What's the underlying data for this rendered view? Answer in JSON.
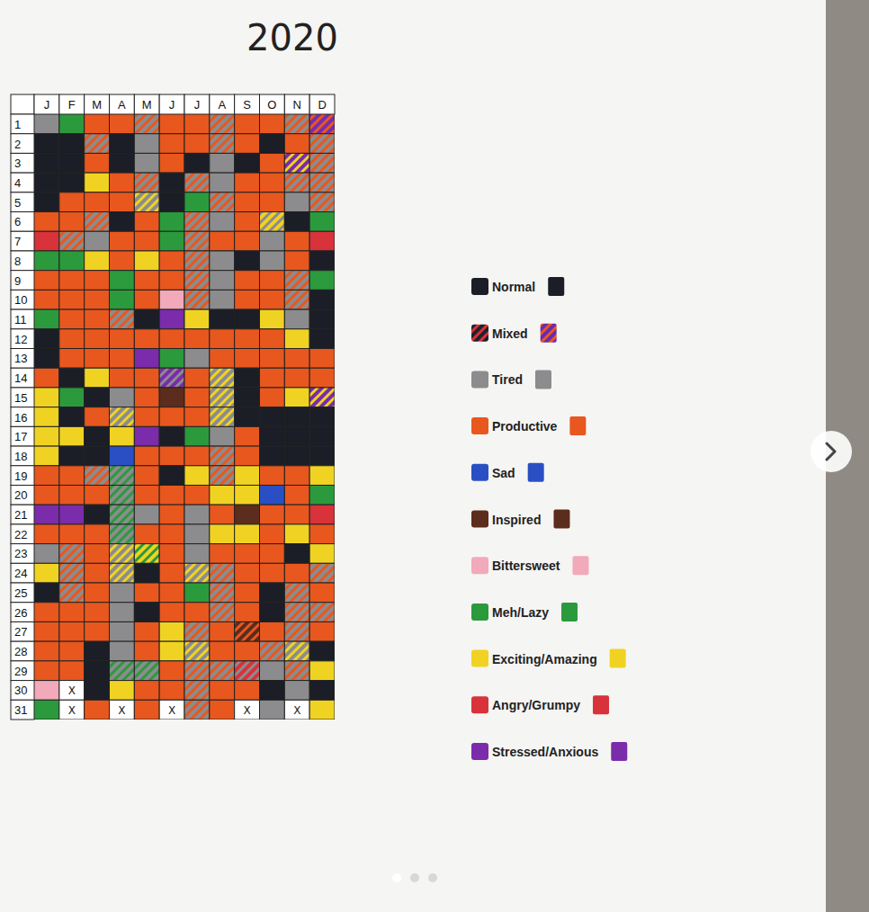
{
  "chart_data": {
    "type": "heatmap",
    "title": "2020",
    "categories": [
      "J",
      "F",
      "M",
      "A",
      "M",
      "J",
      "J",
      "A",
      "S",
      "O",
      "N",
      "D"
    ],
    "rows": [
      1,
      2,
      3,
      4,
      5,
      6,
      7,
      8,
      9,
      10,
      11,
      12,
      13,
      14,
      15,
      16,
      17,
      18,
      19,
      20,
      21,
      22,
      23,
      24,
      25,
      26,
      27,
      28,
      29,
      30,
      31
    ],
    "series": [
      {
        "name": "Normal",
        "color": "#1b1e26"
      },
      {
        "name": "Mixed",
        "color": "#23202c",
        "marker": "striped"
      },
      {
        "name": "Tired",
        "color": "#8c8c8e"
      },
      {
        "name": "Productive",
        "color": "#e8571e"
      },
      {
        "name": "Sad",
        "color": "#2a4fc4"
      },
      {
        "name": "Inspired",
        "color": "#5c2c1c"
      },
      {
        "name": "Bittersweet",
        "color": "#f2a9b9"
      },
      {
        "name": "Meh/Lazy",
        "color": "#2b9a3c"
      },
      {
        "name": "Exciting/Amazing",
        "color": "#f0d322"
      },
      {
        "name": "Angry/Grumpy",
        "color": "#d8323a"
      },
      {
        "name": "Stressed/Anxious",
        "color": "#7a2cab"
      }
    ],
    "cells": [
      [
        2,
        0,
        0,
        0,
        0,
        3,
        9,
        7,
        3,
        3,
        7,
        0,
        0,
        3,
        8,
        8,
        8,
        8,
        3,
        3,
        10,
        3,
        2,
        8,
        0,
        3,
        3,
        3,
        3,
        6,
        7
      ],
      [
        7,
        0,
        0,
        0,
        3,
        3,
        [
          2,
          3
        ],
        7,
        3,
        3,
        3,
        3,
        3,
        0,
        7,
        0,
        8,
        0,
        3,
        3,
        10,
        3,
        [
          2,
          3
        ],
        [
          2,
          3
        ],
        [
          2,
          3
        ],
        3,
        3,
        3,
        3,
        "X",
        "X"
      ],
      [
        3,
        [
          2,
          3
        ],
        3,
        8,
        3,
        [
          2,
          3
        ],
        2,
        8,
        3,
        3,
        3,
        3,
        3,
        8,
        0,
        3,
        0,
        0,
        [
          2,
          3
        ],
        3,
        0,
        3,
        3,
        3,
        3,
        3,
        3,
        0,
        0,
        0,
        3
      ],
      [
        3,
        0,
        0,
        3,
        3,
        0,
        3,
        3,
        7,
        7,
        [
          2,
          3
        ],
        3,
        3,
        3,
        2,
        [
          2,
          8
        ],
        8,
        4,
        [
          2,
          7
        ],
        [
          2,
          7
        ],
        [
          2,
          7
        ],
        [
          2,
          7
        ],
        [
          2,
          8
        ],
        [
          2,
          8
        ],
        2,
        2,
        2,
        2,
        [
          2,
          7
        ],
        8,
        "X"
      ],
      [
        [
          2,
          3
        ],
        2,
        2,
        [
          2,
          3
        ],
        [
          2,
          8
        ],
        3,
        3,
        8,
        3,
        3,
        0,
        3,
        10,
        3,
        3,
        3,
        10,
        3,
        3,
        3,
        2,
        3,
        [
          8,
          7
        ],
        0,
        3,
        0,
        3,
        3,
        [
          2,
          7
        ],
        3,
        3
      ],
      [
        3,
        3,
        3,
        0,
        0,
        7,
        7,
        3,
        3,
        6,
        10,
        3,
        7,
        [
          10,
          2
        ],
        5,
        3,
        0,
        3,
        0,
        3,
        3,
        3,
        3,
        3,
        3,
        3,
        8,
        8,
        3,
        3,
        "X"
      ],
      [
        3,
        3,
        0,
        [
          2,
          3
        ],
        7,
        [
          2,
          3
        ],
        [
          2,
          3
        ],
        [
          2,
          3
        ],
        [
          2,
          3
        ],
        [
          2,
          3
        ],
        8,
        3,
        2,
        3,
        3,
        3,
        7,
        3,
        8,
        3,
        2,
        2,
        2,
        [
          2,
          8
        ],
        7,
        3,
        [
          2,
          3
        ],
        [
          2,
          8
        ],
        [
          2,
          3
        ],
        [
          2,
          3
        ],
        [
          2,
          3
        ]
      ],
      [
        [
          2,
          3
        ],
        [
          2,
          3
        ],
        2,
        2,
        [
          2,
          3
        ],
        2,
        3,
        2,
        2,
        2,
        0,
        3,
        3,
        [
          2,
          8
        ],
        [
          2,
          8
        ],
        [
          2,
          8
        ],
        2,
        [
          2,
          3
        ],
        [
          2,
          3
        ],
        8,
        3,
        8,
        3,
        [
          2,
          3
        ],
        [
          2,
          3
        ],
        [
          2,
          3
        ],
        3,
        3,
        [
          2,
          3
        ],
        3,
        3
      ],
      [
        3,
        3,
        0,
        3,
        3,
        3,
        3,
        0,
        3,
        3,
        0,
        3,
        3,
        0,
        0,
        0,
        3,
        3,
        8,
        8,
        5,
        8,
        3,
        3,
        3,
        3,
        [
          5,
          3
        ],
        3,
        [
          9,
          2
        ],
        3,
        "X"
      ],
      [
        3,
        0,
        3,
        3,
        3,
        [
          8,
          2
        ],
        2,
        2,
        3,
        3,
        8,
        3,
        3,
        3,
        3,
        0,
        0,
        0,
        3,
        4,
        3,
        3,
        3,
        3,
        0,
        0,
        3,
        [
          2,
          3
        ],
        2,
        0,
        2
      ],
      [
        [
          2,
          3
        ],
        3,
        [
          10,
          8
        ],
        [
          2,
          3
        ],
        2,
        0,
        3,
        3,
        [
          2,
          3
        ],
        [
          2,
          3
        ],
        2,
        8,
        3,
        3,
        8,
        0,
        0,
        0,
        3,
        3,
        3,
        8,
        0,
        3,
        [
          2,
          3
        ],
        [
          2,
          3
        ],
        [
          2,
          3
        ],
        [
          2,
          8
        ],
        [
          2,
          3
        ],
        2,
        "X"
      ],
      [
        [
          10,
          3
        ],
        [
          2,
          3
        ],
        [
          2,
          3
        ],
        [
          2,
          3
        ],
        [
          2,
          3
        ],
        7,
        9,
        0,
        7,
        0,
        0,
        0,
        3,
        3,
        [
          10,
          8
        ],
        0,
        0,
        0,
        8,
        7,
        9,
        3,
        8,
        [
          2,
          3
        ],
        3,
        [
          2,
          3
        ],
        3,
        0,
        8,
        0,
        8
      ]
    ]
  }
}
